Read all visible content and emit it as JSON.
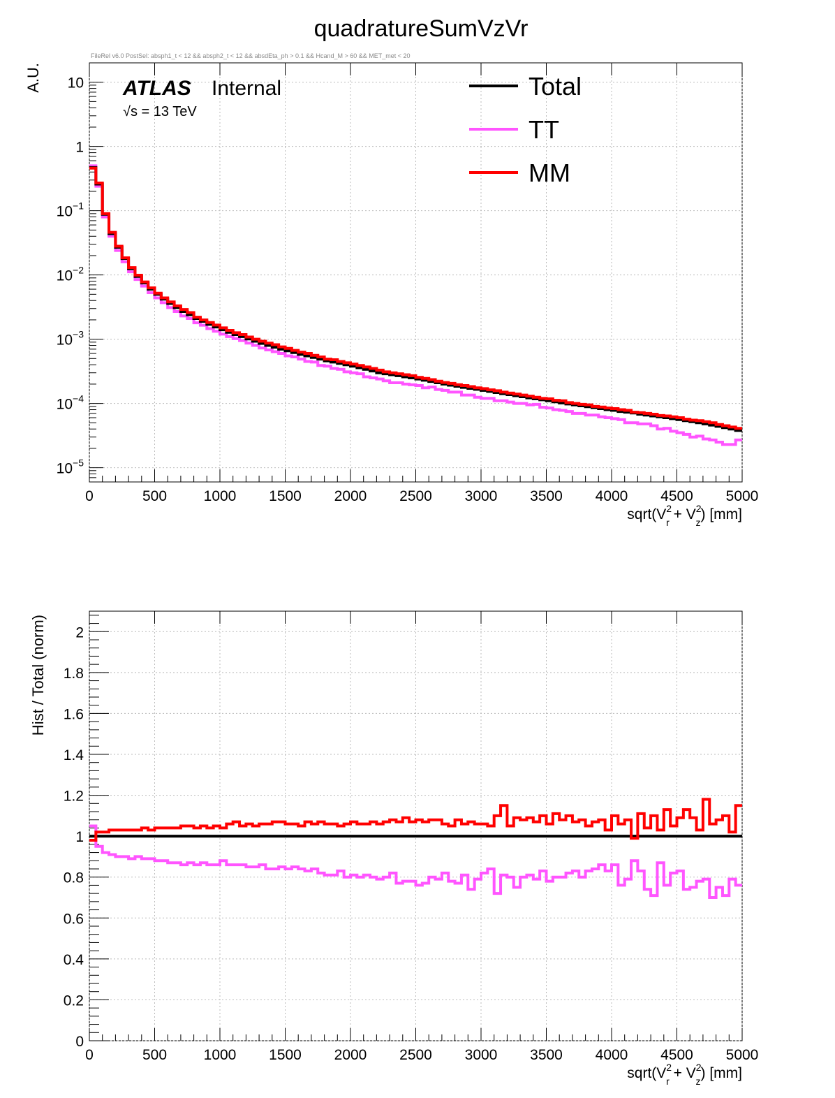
{
  "title": "quadratureSumVzVr",
  "selection_note": "FileRel v6.0 PostSel:  absph1_t < 12 && absph2_t < 12 && absdEta_ph > 0.1 && Hcand_M > 60 && MET_met < 20",
  "atlas_label": "ATLAS",
  "atlas_status": "Internal",
  "energy_label": "√s = 13 TeV",
  "colors": {
    "Total": "#000000",
    "TT": "#ff55ff",
    "MM": "#ff0000"
  },
  "chart_data": [
    {
      "type": "line",
      "drawstyle": "step",
      "panel": "top",
      "ylabel": "A.U.",
      "xlabel": "sqrt(V_r^2 + V_z^2) [mm]",
      "xlim": [
        0,
        5000
      ],
      "ylim": [
        6e-06,
        20
      ],
      "yscale": "log",
      "grid": true,
      "legend_position": "top-right",
      "x_ticks": [
        "0",
        "500",
        "1000",
        "1500",
        "2000",
        "2500",
        "3000",
        "3500",
        "4000",
        "4500",
        "5000"
      ],
      "y_ticks": [
        {
          "base": "10",
          "exp": "",
          "value": 10
        },
        {
          "base": "1",
          "exp": "",
          "value": 1
        },
        {
          "base": "10",
          "exp": "−1",
          "value": 0.1
        },
        {
          "base": "10",
          "exp": "−2",
          "value": 0.01
        },
        {
          "base": "10",
          "exp": "−3",
          "value": 0.001
        },
        {
          "base": "10",
          "exp": "−4",
          "value": 0.0001
        },
        {
          "base": "10",
          "exp": "−5",
          "value": 1e-05
        }
      ],
      "bin_edges_range": [
        0,
        5000
      ],
      "n_bins": 100,
      "series": [
        {
          "name": "Total",
          "values": [
            0.47,
            0.26,
            0.088,
            0.044,
            0.027,
            0.018,
            0.0125,
            0.0095,
            0.0075,
            0.006,
            0.005,
            0.0042,
            0.0036,
            0.0031,
            0.0027,
            0.0024,
            0.0021,
            0.0019,
            0.0017,
            0.00155,
            0.0014,
            0.00128,
            0.00118,
            0.0011,
            0.00101,
            0.00093,
            0.00086,
            0.0008,
            0.00075,
            0.0007,
            0.00066,
            0.00062,
            0.00058,
            0.00055,
            0.00052,
            0.00049,
            0.00046,
            0.00044,
            0.00042,
            0.0004,
            0.00038,
            0.00036,
            0.00034,
            0.00032,
            0.0003,
            0.00029,
            0.00028,
            0.00027,
            0.00026,
            0.00025,
            0.00024,
            0.00023,
            0.00022,
            0.00021,
            0.0002,
            0.000192,
            0.000185,
            0.000178,
            0.000172,
            0.000166,
            0.00016,
            0.000154,
            0.000148,
            0.000142,
            0.000137,
            0.000132,
            0.000127,
            0.000122,
            0.000118,
            0.000114,
            0.00011,
            0.000106,
            0.000102,
            9.8e-05,
            9.5e-05,
            9.2e-05,
            8.9e-05,
            8.6e-05,
            8.3e-05,
            8e-05,
            7.8e-05,
            7.5e-05,
            7.3e-05,
            7.1e-05,
            6.8e-05,
            6.6e-05,
            6.4e-05,
            6.2e-05,
            6e-05,
            5.8e-05,
            5.6e-05,
            5.4e-05,
            5.2e-05,
            5e-05,
            4.8e-05,
            4.6e-05,
            4.4e-05,
            4.2e-05,
            4e-05,
            3.8e-05
          ]
        },
        {
          "name": "TT",
          "values": [
            0.5,
            0.24,
            0.08,
            0.04,
            0.024,
            0.016,
            0.0112,
            0.0085,
            0.0067,
            0.0053,
            0.0044,
            0.0037,
            0.0031,
            0.0027,
            0.0023,
            0.0021,
            0.0018,
            0.00165,
            0.00146,
            0.00133,
            0.0012,
            0.0011,
            0.00102,
            0.00095,
            0.00087,
            0.0008,
            0.00073,
            0.00068,
            0.00064,
            0.0006,
            0.00055,
            0.00053,
            0.00049,
            0.00045,
            0.00044,
            0.00039,
            0.00038,
            0.00035,
            0.00034,
            0.00031,
            0.0003,
            0.00029,
            0.00026,
            0.00025,
            0.00024,
            0.000225,
            0.00021,
            0.00021,
            0.0002,
            0.000195,
            0.00019,
            0.000175,
            0.00018,
            0.000165,
            0.00016,
            0.00015,
            0.00015,
            0.000135,
            0.000135,
            0.000125,
            0.00012,
            0.00012,
            0.00011,
            0.00011,
            0.000105,
            0.0001,
            0.0001,
            9.5e-05,
            9.7e-05,
            8.7e-05,
            8.5e-05,
            8e-05,
            7.8e-05,
            7.5e-05,
            7e-05,
            7e-05,
            6.6e-05,
            6.6e-05,
            6.2e-05,
            6e-05,
            5.8e-05,
            5.6e-05,
            5e-05,
            5e-05,
            4.8e-05,
            4.8e-05,
            4.5e-05,
            4e-05,
            4.1e-05,
            3.7e-05,
            3.5e-05,
            3.3e-05,
            3e-05,
            3.1e-05,
            2.8e-05,
            2.7e-05,
            2.5e-05,
            2.3e-05,
            2.3e-05,
            2.7e-05
          ]
        },
        {
          "name": "MM",
          "values": [
            0.46,
            0.27,
            0.09,
            0.046,
            0.028,
            0.0185,
            0.013,
            0.0099,
            0.0078,
            0.0063,
            0.0052,
            0.0044,
            0.0038,
            0.0033,
            0.0029,
            0.0026,
            0.0022,
            0.002,
            0.00182,
            0.00166,
            0.0015,
            0.00137,
            0.00126,
            0.00118,
            0.00108,
            0.001,
            0.00093,
            0.00087,
            0.00082,
            0.00076,
            0.00072,
            0.00067,
            0.00063,
            0.0006,
            0.00056,
            0.00053,
            0.00049,
            0.00048,
            0.00045,
            0.00043,
            0.00041,
            0.00039,
            0.00037,
            0.00035,
            0.00033,
            0.00031,
            0.0003,
            0.00029,
            0.00028,
            0.00027,
            0.000255,
            0.000245,
            0.000235,
            0.000222,
            0.000212,
            0.000205,
            0.000196,
            0.00019,
            0.000183,
            0.000175,
            0.00017,
            0.000163,
            0.000158,
            0.00015,
            0.000145,
            0.00014,
            0.000135,
            0.00013,
            0.000125,
            0.00012,
            0.000118,
            0.000112,
            0.00011,
            0.000103,
            0.0001,
            9.7e-05,
            9.5e-05,
            9e-05,
            8.8e-05,
            8.5e-05,
            8.3e-05,
            8e-05,
            7.8e-05,
            7.3e-05,
            7.2e-05,
            7e-05,
            6.8e-05,
            6.5e-05,
            6.4e-05,
            6.2e-05,
            6e-05,
            5.7e-05,
            5.5e-05,
            5.4e-05,
            5.2e-05,
            5e-05,
            4.7e-05,
            4.5e-05,
            4.3e-05,
            4.1e-05
          ]
        }
      ]
    },
    {
      "type": "line",
      "drawstyle": "step",
      "panel": "bottom",
      "ylabel": "Hist / Total (norm)",
      "xlabel": "sqrt(V_r^2 + V_z^2) [mm]",
      "xlim": [
        0,
        5000
      ],
      "ylim": [
        0,
        2.1
      ],
      "grid": true,
      "x_ticks": [
        "0",
        "500",
        "1000",
        "1500",
        "2000",
        "2500",
        "3000",
        "3500",
        "4000",
        "4500",
        "5000"
      ],
      "y_ticks": [
        "0",
        "0.2",
        "0.4",
        "0.6",
        "0.8",
        "1",
        "1.2",
        "1.4",
        "1.6",
        "1.8",
        "2"
      ],
      "bin_edges_range": [
        0,
        5000
      ],
      "n_bins": 100,
      "series": [
        {
          "name": "Total",
          "values": [
            1,
            1,
            1,
            1,
            1,
            1,
            1,
            1,
            1,
            1,
            1,
            1,
            1,
            1,
            1,
            1,
            1,
            1,
            1,
            1,
            1,
            1,
            1,
            1,
            1,
            1,
            1,
            1,
            1,
            1,
            1,
            1,
            1,
            1,
            1,
            1,
            1,
            1,
            1,
            1,
            1,
            1,
            1,
            1,
            1,
            1,
            1,
            1,
            1,
            1,
            1,
            1,
            1,
            1,
            1,
            1,
            1,
            1,
            1,
            1,
            1,
            1,
            1,
            1,
            1,
            1,
            1,
            1,
            1,
            1,
            1,
            1,
            1,
            1,
            1,
            1,
            1,
            1,
            1,
            1,
            1,
            1,
            1,
            1,
            1,
            1,
            1,
            1,
            1,
            1,
            1,
            1,
            1,
            1,
            1,
            1,
            1,
            1,
            1,
            1
          ]
        },
        {
          "name": "TT",
          "values": [
            1.05,
            0.95,
            0.92,
            0.91,
            0.9,
            0.9,
            0.89,
            0.9,
            0.89,
            0.89,
            0.88,
            0.88,
            0.87,
            0.87,
            0.86,
            0.87,
            0.86,
            0.87,
            0.86,
            0.86,
            0.88,
            0.86,
            0.86,
            0.86,
            0.85,
            0.85,
            0.86,
            0.84,
            0.84,
            0.85,
            0.84,
            0.85,
            0.84,
            0.83,
            0.84,
            0.82,
            0.81,
            0.81,
            0.83,
            0.8,
            0.81,
            0.8,
            0.81,
            0.8,
            0.79,
            0.8,
            0.82,
            0.77,
            0.78,
            0.78,
            0.76,
            0.77,
            0.8,
            0.79,
            0.82,
            0.78,
            0.77,
            0.81,
            0.74,
            0.79,
            0.82,
            0.84,
            0.72,
            0.81,
            0.8,
            0.75,
            0.8,
            0.81,
            0.79,
            0.83,
            0.78,
            0.8,
            0.8,
            0.82,
            0.83,
            0.8,
            0.83,
            0.84,
            0.86,
            0.83,
            0.86,
            0.76,
            0.79,
            0.88,
            0.83,
            0.74,
            0.71,
            0.87,
            0.76,
            0.82,
            0.83,
            0.74,
            0.75,
            0.78,
            0.79,
            0.7,
            0.75,
            0.71,
            0.79,
            0.76
          ]
        },
        {
          "name": "MM",
          "values": [
            0.98,
            1.02,
            1.02,
            1.03,
            1.03,
            1.03,
            1.03,
            1.03,
            1.04,
            1.03,
            1.04,
            1.04,
            1.04,
            1.04,
            1.05,
            1.05,
            1.04,
            1.05,
            1.04,
            1.05,
            1.04,
            1.06,
            1.07,
            1.05,
            1.06,
            1.05,
            1.06,
            1.06,
            1.07,
            1.07,
            1.06,
            1.06,
            1.05,
            1.07,
            1.06,
            1.07,
            1.06,
            1.06,
            1.05,
            1.06,
            1.07,
            1.06,
            1.06,
            1.07,
            1.06,
            1.07,
            1.08,
            1.07,
            1.09,
            1.07,
            1.08,
            1.07,
            1.08,
            1.08,
            1.06,
            1.05,
            1.08,
            1.06,
            1.07,
            1.06,
            1.06,
            1.05,
            1.1,
            1.15,
            1.05,
            1.09,
            1.08,
            1.09,
            1.07,
            1.1,
            1.06,
            1.11,
            1.08,
            1.1,
            1.07,
            1.08,
            1.05,
            1.07,
            1.08,
            1.03,
            1.1,
            1.06,
            1.08,
            0.99,
            1.11,
            1.04,
            1.1,
            1.03,
            1.13,
            1.05,
            1.09,
            1.13,
            1.09,
            1.03,
            1.18,
            1.06,
            1.08,
            1.1,
            1.02,
            1.15
          ]
        }
      ]
    }
  ]
}
